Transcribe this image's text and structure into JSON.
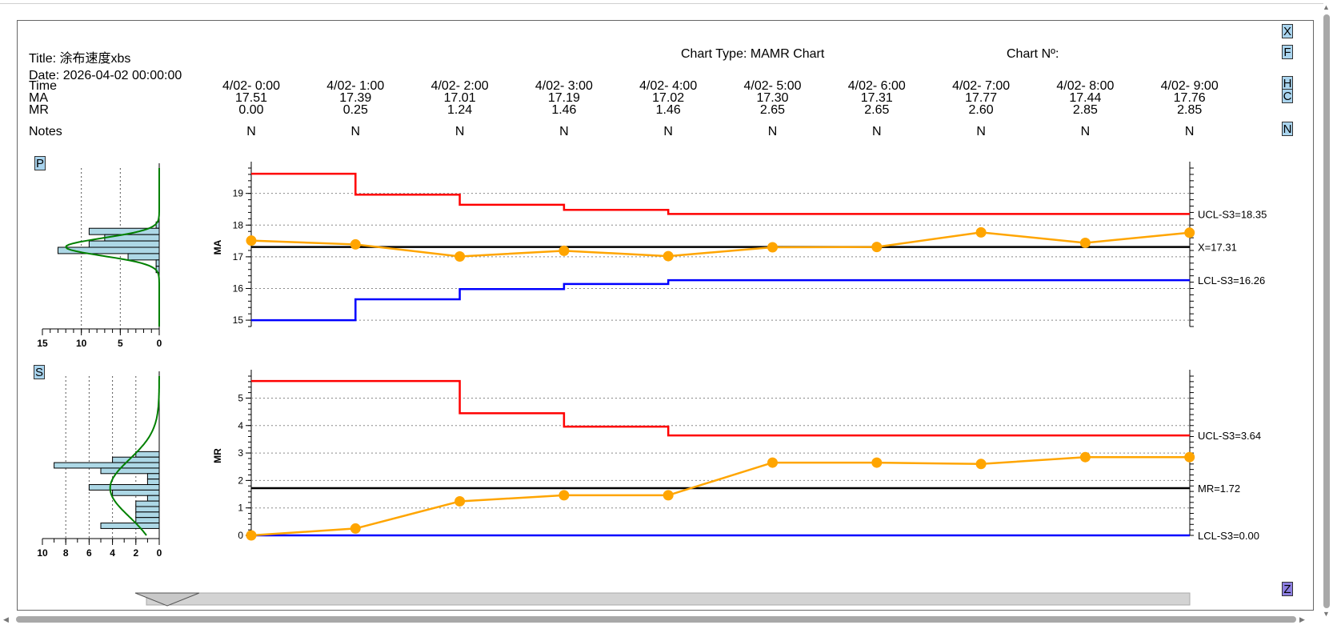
{
  "header": {
    "title": "Title: 涂布速度xbs",
    "date": "Date: 2026-04-02 00:00:00",
    "chart_type": "Chart Type: MAMR Chart",
    "chart_no": "Chart Nº:"
  },
  "table": {
    "row_labels": [
      "Time",
      "MA",
      "MR",
      "Notes"
    ],
    "columns": [
      {
        "time": "4/02- 0:00",
        "ma": "17.51",
        "mr": "0.00",
        "note": "N"
      },
      {
        "time": "4/02- 1:00",
        "ma": "17.39",
        "mr": "0.25",
        "note": "N"
      },
      {
        "time": "4/02- 2:00",
        "ma": "17.01",
        "mr": "1.24",
        "note": "N"
      },
      {
        "time": "4/02- 3:00",
        "ma": "17.19",
        "mr": "1.46",
        "note": "N"
      },
      {
        "time": "4/02- 4:00",
        "ma": "17.02",
        "mr": "1.46",
        "note": "N"
      },
      {
        "time": "4/02- 5:00",
        "ma": "17.30",
        "mr": "2.65",
        "note": "N"
      },
      {
        "time": "4/02- 6:00",
        "ma": "17.31",
        "mr": "2.65",
        "note": "N"
      },
      {
        "time": "4/02- 7:00",
        "ma": "17.77",
        "mr": "2.60",
        "note": "N"
      },
      {
        "time": "4/02- 8:00",
        "ma": "17.44",
        "mr": "2.85",
        "note": "N"
      },
      {
        "time": "4/02- 9:00",
        "ma": "17.76",
        "mr": "2.85",
        "note": "N"
      }
    ]
  },
  "buttons": {
    "x": "X",
    "f": "F",
    "h": "H",
    "c": "C",
    "n": "N",
    "p": "P",
    "s": "S",
    "z": "Z"
  },
  "colors": {
    "ucl": "#ff0000",
    "lcl": "#0000ff",
    "center": "#000000",
    "data": "#ffa500",
    "hist_fill": "#add8e6",
    "normal_curve": "#008000",
    "button": "#a9d4ee",
    "zoom_button": "#8c7ee0"
  },
  "chart_data": [
    {
      "type": "line",
      "name": "ma-chart",
      "ylabel": "MA",
      "ylim": [
        14.8,
        19.8
      ],
      "yticks": [
        15,
        16,
        17,
        18,
        19
      ],
      "x": [
        "4/02- 0:00",
        "4/02- 1:00",
        "4/02- 2:00",
        "4/02- 3:00",
        "4/02- 4:00",
        "4/02- 5:00",
        "4/02- 6:00",
        "4/02- 7:00",
        "4/02- 8:00",
        "4/02- 9:00"
      ],
      "values": [
        17.51,
        17.39,
        17.01,
        17.19,
        17.02,
        17.3,
        17.31,
        17.77,
        17.44,
        17.76
      ],
      "ucl": [
        19.62,
        18.96,
        18.64,
        18.48,
        18.35,
        18.35,
        18.35,
        18.35,
        18.35,
        18.35
      ],
      "lcl": [
        15.0,
        15.66,
        15.98,
        16.14,
        16.26,
        16.26,
        16.26,
        16.26,
        16.26,
        16.26
      ],
      "center": 17.31,
      "labels": {
        "ucl": "UCL-S3=18.35",
        "center": "X=17.31",
        "lcl": "LCL-S3=16.26"
      },
      "grid": true,
      "histogram": {
        "xticks": [
          15,
          10,
          5,
          0
        ],
        "xmax": 15,
        "bins": [
          {
            "y": 18.0,
            "count": 0.4
          },
          {
            "y": 17.8,
            "count": 9
          },
          {
            "y": 17.6,
            "count": 7
          },
          {
            "y": 17.4,
            "count": 9
          },
          {
            "y": 17.2,
            "count": 13
          },
          {
            "y": 17.0,
            "count": 4
          },
          {
            "y": 16.8,
            "count": 0.4
          },
          {
            "y": 16.6,
            "count": 0.4
          }
        ],
        "curve": {
          "mean": 17.31,
          "sd": 0.28,
          "peak": 12
        }
      }
    },
    {
      "type": "line",
      "name": "mr-chart",
      "ylabel": "MR",
      "ylim": [
        0,
        5.8
      ],
      "yticks": [
        0,
        1,
        2,
        3,
        4,
        5
      ],
      "x": [
        "4/02- 0:00",
        "4/02- 1:00",
        "4/02- 2:00",
        "4/02- 3:00",
        "4/02- 4:00",
        "4/02- 5:00",
        "4/02- 6:00",
        "4/02- 7:00",
        "4/02- 8:00",
        "4/02- 9:00"
      ],
      "values": [
        0.0,
        0.25,
        1.24,
        1.46,
        1.46,
        2.65,
        2.65,
        2.6,
        2.85,
        2.85
      ],
      "ucl": [
        5.62,
        5.62,
        4.45,
        3.96,
        3.64,
        3.64,
        3.64,
        3.64,
        3.64,
        3.64
      ],
      "lcl": [
        0,
        0,
        0,
        0,
        0,
        0,
        0,
        0,
        0,
        0
      ],
      "center": 1.72,
      "labels": {
        "ucl": "UCL-S3=3.64",
        "center": "MR=1.72",
        "lcl": "LCL-S3=0.00"
      },
      "grid": true,
      "histogram": {
        "xticks": [
          10,
          8,
          6,
          4,
          2,
          0
        ],
        "xmax": 10,
        "bins": [
          {
            "y": 2.95,
            "count": 2
          },
          {
            "y": 2.75,
            "count": 4
          },
          {
            "y": 2.55,
            "count": 9
          },
          {
            "y": 2.35,
            "count": 5
          },
          {
            "y": 2.15,
            "count": 1
          },
          {
            "y": 1.95,
            "count": 1
          },
          {
            "y": 1.75,
            "count": 6
          },
          {
            "y": 1.55,
            "count": 4
          },
          {
            "y": 1.35,
            "count": 1
          },
          {
            "y": 1.15,
            "count": 2
          },
          {
            "y": 0.95,
            "count": 2
          },
          {
            "y": 0.75,
            "count": 2
          },
          {
            "y": 0.55,
            "count": 2
          },
          {
            "y": 0.35,
            "count": 5
          }
        ],
        "curve": {
          "mean": 1.72,
          "sd": 1.05,
          "peak": 4.2
        }
      }
    }
  ]
}
